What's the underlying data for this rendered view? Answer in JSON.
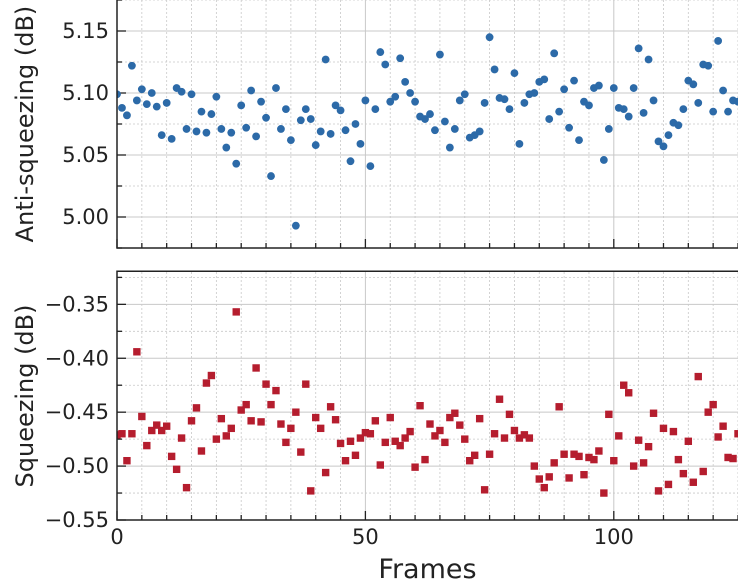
{
  "chart_data": {
    "type": "scatter",
    "x_axis": {
      "label": "Frames",
      "range": [
        0,
        125
      ],
      "ticks": [
        0,
        50,
        100
      ],
      "tick_labels": [
        "0",
        "50",
        "100"
      ],
      "minor_ticks": [
        5,
        10,
        15,
        20,
        25,
        30,
        35,
        40,
        45,
        55,
        60,
        65,
        70,
        75,
        80,
        85,
        90,
        95,
        105,
        110,
        115,
        120,
        125
      ]
    },
    "grid": true,
    "subplots": [
      {
        "name": "anti",
        "ylabel": "Anti-squeezing (dB)",
        "ylim": [
          4.975,
          5.175
        ],
        "yticks": [
          5.0,
          5.05,
          5.1,
          5.15
        ],
        "ytick_labels": [
          "5.00",
          "5.05",
          "5.10",
          "5.15"
        ],
        "marker": "circle",
        "color": "#2c6aa8",
        "x": [
          0,
          1,
          2,
          3,
          4,
          5,
          6,
          7,
          8,
          9,
          10,
          11,
          12,
          13,
          14,
          15,
          16,
          17,
          18,
          19,
          20,
          21,
          22,
          23,
          24,
          25,
          26,
          27,
          28,
          29,
          30,
          31,
          32,
          33,
          34,
          35,
          36,
          37,
          38,
          39,
          40,
          41,
          42,
          43,
          44,
          45,
          46,
          47,
          48,
          49,
          50,
          51,
          52,
          53,
          54,
          55,
          56,
          57,
          58,
          59,
          60,
          61,
          62,
          63,
          64,
          65,
          66,
          67,
          68,
          69,
          70,
          71,
          72,
          73,
          74,
          75,
          76,
          77,
          78,
          79,
          80,
          81,
          82,
          83,
          84,
          85,
          86,
          87,
          88,
          89,
          90,
          91,
          92,
          93,
          94,
          95,
          96,
          97,
          98,
          99,
          100,
          101,
          102,
          103,
          104,
          105,
          106,
          107,
          108,
          109,
          110,
          111,
          112,
          113,
          114,
          115,
          116,
          117,
          118,
          119,
          120,
          121,
          122,
          123,
          124,
          125
        ],
        "y": [
          5.099,
          5.088,
          5.082,
          5.122,
          5.094,
          5.103,
          5.091,
          5.1,
          5.089,
          5.066,
          5.092,
          5.063,
          5.104,
          5.101,
          5.071,
          5.099,
          5.069,
          5.085,
          5.068,
          5.083,
          5.097,
          5.071,
          5.056,
          5.068,
          5.043,
          5.09,
          5.072,
          5.102,
          5.065,
          5.093,
          5.08,
          5.033,
          5.104,
          5.071,
          5.087,
          5.062,
          4.993,
          5.078,
          5.087,
          5.079,
          5.058,
          5.069,
          5.127,
          5.067,
          5.09,
          5.086,
          5.07,
          5.045,
          5.075,
          5.059,
          5.094,
          5.041,
          5.087,
          5.133,
          5.123,
          5.093,
          5.097,
          5.128,
          5.109,
          5.1,
          5.093,
          5.081,
          5.079,
          5.083,
          5.07,
          5.131,
          5.077,
          5.056,
          5.071,
          5.094,
          5.099,
          5.064,
          5.066,
          5.069,
          5.092,
          5.145,
          5.119,
          5.096,
          5.095,
          5.087,
          5.116,
          5.059,
          5.092,
          5.099,
          5.1,
          5.109,
          5.111,
          5.079,
          5.132,
          5.085,
          5.103,
          5.072,
          5.11,
          5.062,
          5.093,
          5.09,
          5.104,
          5.106,
          5.046,
          5.071,
          5.104,
          5.088,
          5.087,
          5.081,
          5.104,
          5.136,
          5.084,
          5.127,
          5.094,
          5.061,
          5.057,
          5.066,
          5.076,
          5.074,
          5.087,
          5.11,
          5.107,
          5.092,
          5.123,
          5.122,
          5.085,
          5.142,
          5.102,
          5.085,
          5.094,
          5.093
        ]
      },
      {
        "name": "squeeze",
        "ylabel": "Squeezing (dB)",
        "ylim": [
          -0.55,
          -0.32
        ],
        "yticks": [
          -0.55,
          -0.5,
          -0.45,
          -0.4,
          -0.35
        ],
        "ytick_labels": [
          "−0.55",
          "−0.50",
          "−0.45",
          "−0.40",
          "−0.35"
        ],
        "marker": "square",
        "color": "#b51d2e",
        "x": [
          0,
          1,
          2,
          3,
          4,
          5,
          6,
          7,
          8,
          9,
          10,
          11,
          12,
          13,
          14,
          15,
          16,
          17,
          18,
          19,
          20,
          21,
          22,
          23,
          24,
          25,
          26,
          27,
          28,
          29,
          30,
          31,
          32,
          33,
          34,
          35,
          36,
          37,
          38,
          39,
          40,
          41,
          42,
          43,
          44,
          45,
          46,
          47,
          48,
          49,
          50,
          51,
          52,
          53,
          54,
          55,
          56,
          57,
          58,
          59,
          60,
          61,
          62,
          63,
          64,
          65,
          66,
          67,
          68,
          69,
          70,
          71,
          72,
          73,
          74,
          75,
          76,
          77,
          78,
          79,
          80,
          81,
          82,
          83,
          84,
          85,
          86,
          87,
          88,
          89,
          90,
          91,
          92,
          93,
          94,
          95,
          96,
          97,
          98,
          99,
          100,
          101,
          102,
          103,
          104,
          105,
          106,
          107,
          108,
          109,
          110,
          111,
          112,
          113,
          114,
          115,
          116,
          117,
          118,
          119,
          120,
          121,
          122,
          123,
          124,
          125
        ],
        "y": [
          -0.471,
          -0.47,
          -0.495,
          -0.47,
          -0.394,
          -0.454,
          -0.481,
          -0.467,
          -0.462,
          -0.467,
          -0.463,
          -0.491,
          -0.503,
          -0.474,
          -0.52,
          -0.458,
          -0.446,
          -0.486,
          -0.423,
          -0.416,
          -0.475,
          -0.456,
          -0.472,
          -0.465,
          -0.357,
          -0.448,
          -0.443,
          -0.458,
          -0.409,
          -0.459,
          -0.424,
          -0.443,
          -0.43,
          -0.461,
          -0.478,
          -0.465,
          -0.45,
          -0.487,
          -0.424,
          -0.523,
          -0.455,
          -0.465,
          -0.506,
          -0.445,
          -0.457,
          -0.479,
          -0.495,
          -0.477,
          -0.49,
          -0.474,
          -0.469,
          -0.47,
          -0.458,
          -0.499,
          -0.478,
          -0.455,
          -0.477,
          -0.481,
          -0.474,
          -0.468,
          -0.501,
          -0.444,
          -0.494,
          -0.461,
          -0.472,
          -0.467,
          -0.478,
          -0.455,
          -0.451,
          -0.462,
          -0.475,
          -0.495,
          -0.49,
          -0.456,
          -0.522,
          -0.489,
          -0.47,
          -0.438,
          -0.474,
          -0.452,
          -0.467,
          -0.474,
          -0.471,
          -0.474,
          -0.5,
          -0.512,
          -0.52,
          -0.51,
          -0.497,
          -0.445,
          -0.489,
          -0.511,
          -0.489,
          -0.491,
          -0.508,
          -0.492,
          -0.494,
          -0.486,
          -0.525,
          -0.452,
          -0.495,
          -0.472,
          -0.425,
          -0.432,
          -0.5,
          -0.476,
          -0.497,
          -0.482,
          -0.451,
          -0.523,
          -0.465,
          -0.517,
          -0.468,
          -0.494,
          -0.507,
          -0.477,
          -0.515,
          -0.417,
          -0.505,
          -0.45,
          -0.443,
          -0.473,
          -0.463,
          -0.492,
          -0.493,
          -0.47
        ]
      }
    ]
  }
}
